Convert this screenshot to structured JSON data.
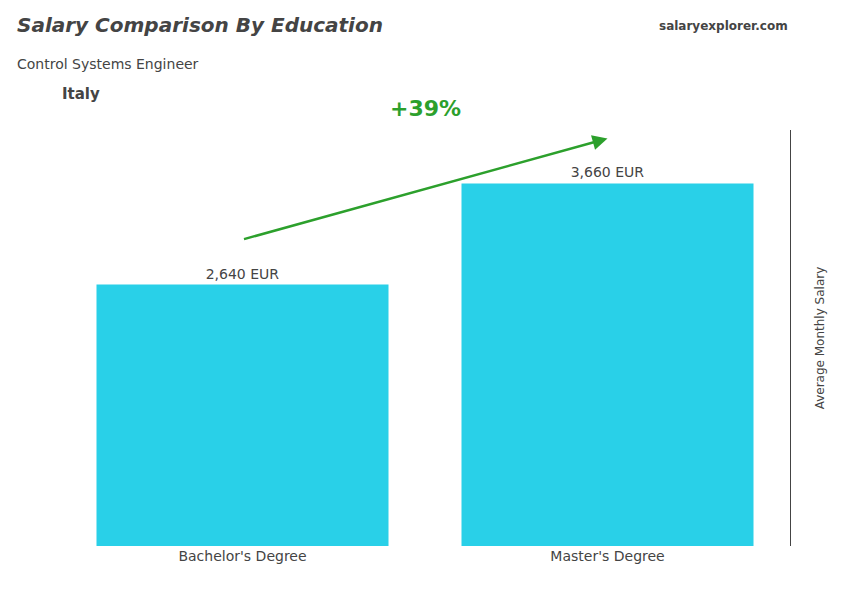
{
  "chart_data": {
    "type": "bar",
    "title": "Salary Comparison By Education",
    "subtitle": "Control Systems Engineer",
    "categories": [
      "Bachelor's Degree",
      "Master's Degree"
    ],
    "values": [
      2640,
      3660
    ],
    "value_labels": [
      "2,640 EUR",
      "3,660 EUR"
    ],
    "data_labels": true,
    "color": "#29d0e8",
    "ylabel": "Average Monthly Salary",
    "ylim": [
      0,
      4200
    ],
    "tick_labels": "x",
    "grid": false,
    "annotations": [
      "+39%",
      "Italy",
      "salaryexplorer.com"
    ]
  }
}
